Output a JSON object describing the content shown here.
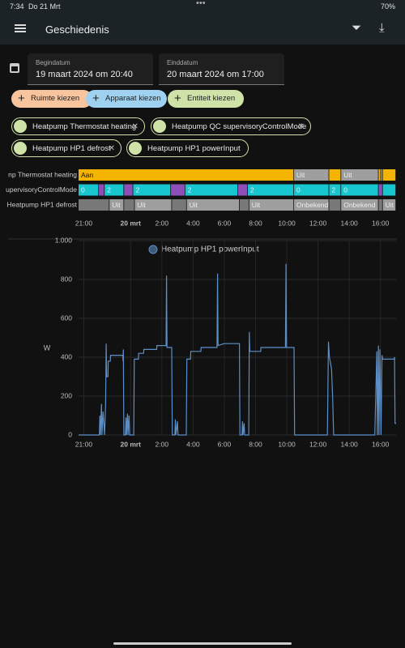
{
  "status": {
    "time": "7:34",
    "date": "Do 21 Mrt",
    "battery": "70%"
  },
  "header": {
    "title": "Geschiedenis"
  },
  "dates": {
    "start_label": "Begindatum",
    "start": "19 maart 2024 om 20:40",
    "end_label": "Einddatum",
    "end": "20 maart 2024 om 17:00"
  },
  "buttons": [
    "Ruimte kiezen",
    "Apparaat kiezen",
    "Entiteit kiezen"
  ],
  "chips": [
    "Heatpump Thermostat heating",
    "Heatpump QC supervisoryControlMode",
    "Heatpump HP1 defrost",
    "Heatpump HP1 powerInput"
  ],
  "timeline": {
    "rows": [
      {
        "name": "np Thermostat heating",
        "segments": [
          {
            "start": "20:40",
            "state": "Aan",
            "color": "#f5b400"
          },
          {
            "start": "10:28",
            "state": "Uit",
            "color": "#9e9e9e"
          },
          {
            "start": "12:43",
            "state": null,
            "color": "#f5b400"
          },
          {
            "start": "13:29",
            "state": "Uit",
            "color": "#9e9e9e"
          },
          {
            "start": "15:53",
            "state": null,
            "color": "#f5b400"
          },
          {
            "start": "16:02",
            "state": null,
            "color": "#9e9e9e"
          },
          {
            "start": "16:09",
            "state": null,
            "color": "#f5b400"
          }
        ]
      },
      {
        "name": "upervisoryControlMode",
        "segments": [
          {
            "start": "20:40",
            "state": "0",
            "color": "#18c6cf"
          },
          {
            "start": "21:58",
            "state": null,
            "color": "#8e4fb8"
          },
          {
            "start": "22:20",
            "state": "2",
            "color": "#18c6cf"
          },
          {
            "start": "23:35",
            "state": null,
            "color": "#8e4fb8"
          },
          {
            "start": "00:10",
            "state": "2",
            "color": "#18c6cf"
          },
          {
            "start": "02:35",
            "state": null,
            "color": "#8e4fb8"
          },
          {
            "start": "03:30",
            "state": "2",
            "color": "#18c6cf"
          },
          {
            "start": "06:53",
            "state": null,
            "color": "#8e4fb8"
          },
          {
            "start": "07:30",
            "state": "2",
            "color": "#18c6cf"
          },
          {
            "start": "10:28",
            "state": "0",
            "color": "#18c6cf"
          },
          {
            "start": "12:43",
            "state": "2",
            "color": "#18c6cf"
          },
          {
            "start": "13:29",
            "state": "0",
            "color": "#18c6cf"
          },
          {
            "start": "15:53",
            "state": null,
            "color": "#8e4fb8"
          },
          {
            "start": "16:09",
            "state": null,
            "color": "#18c6cf"
          }
        ]
      },
      {
        "name": "Heatpump HP1 defrost",
        "segments": [
          {
            "start": "20:40",
            "state": null,
            "color": "#787878"
          },
          {
            "start": "22:39",
            "state": "Uit",
            "color": "#9e9e9e"
          },
          {
            "start": "23:35",
            "state": null,
            "color": "#787878"
          },
          {
            "start": "00:16",
            "state": "Uit",
            "color": "#9e9e9e"
          },
          {
            "start": "02:39",
            "state": null,
            "color": "#787878"
          },
          {
            "start": "03:36",
            "state": "Uit",
            "color": "#9e9e9e"
          },
          {
            "start": "06:59",
            "state": null,
            "color": "#787878"
          },
          {
            "start": "07:36",
            "state": "Uit",
            "color": "#9e9e9e"
          },
          {
            "start": "10:28",
            "state": "Onbekend",
            "color": "#9e9e9e"
          },
          {
            "start": "12:43",
            "state": null,
            "color": "#787878"
          },
          {
            "start": "13:29",
            "state": "Onbekend",
            "color": "#9e9e9e"
          },
          {
            "start": "15:53",
            "state": null,
            "color": "#787878"
          },
          {
            "start": "16:09",
            "state": "Uit",
            "color": "#9e9e9e"
          }
        ]
      }
    ]
  },
  "chart_data": {
    "type": "line",
    "y_label": "W",
    "grid": true,
    "xlim": [
      "20:40",
      "17:00"
    ],
    "xticks": [
      "21:00",
      {
        "value": "00:00",
        "label": "20 mrt"
      },
      "2:00",
      "4:00",
      "6:00",
      "8:00",
      "10:00",
      "12:00",
      "14:00",
      "16:00"
    ],
    "ylim": [
      0,
      1000
    ],
    "yticks": [
      0,
      200,
      400,
      600,
      800,
      {
        "value": 1000,
        "label": "1.000"
      }
    ],
    "series": [
      {
        "name": "Heatpump HP1 powerInput",
        "color": "#5b8fc9",
        "x": [
          "20:40",
          "22:00",
          "22:02",
          "22:04",
          "22:08",
          "22:10",
          "22:14",
          "22:20",
          "22:24",
          "22:26",
          "22:28",
          "22:33",
          "22:34",
          "22:42",
          "22:43",
          "23:30",
          "23:31",
          "23:32",
          "23:34",
          "23:40",
          "23:42",
          "23:44",
          "23:48",
          "23:50",
          "23:54",
          "23:56",
          "0:12",
          "0:14",
          "0:30",
          "0:31",
          "0:50",
          "0:51",
          "1:40",
          "1:41",
          "2:16",
          "2:18",
          "2:20",
          "2:38",
          "2:40",
          "2:50",
          "2:52",
          "2:54",
          "3:00",
          "3:02",
          "3:34",
          "3:36",
          "3:50",
          "3:51",
          "4:30",
          "4:31",
          "5:32",
          "5:34",
          "5:36",
          "6:00",
          "6:58",
          "7:00",
          "7:08",
          "7:10",
          "7:12",
          "7:16",
          "7:18",
          "7:34",
          "7:36",
          "7:38",
          "8:20",
          "8:21",
          "9:55",
          "9:57",
          "9:59",
          "10:28",
          "10:30",
          "12:36",
          "12:40",
          "12:44",
          "12:52",
          "12:56",
          "13:00",
          "15:38",
          "15:42",
          "15:46",
          "15:48",
          "15:52",
          "15:54",
          "15:58",
          "16:02",
          "16:06",
          "16:08",
          "16:52",
          "16:54",
          "16:56",
          "17:00"
        ],
        "values": [
          0,
          0,
          100,
          0,
          160,
          0,
          120,
          0,
          160,
          470,
          300,
          300,
          380,
          380,
          410,
          410,
          380,
          440,
          0,
          0,
          90,
          0,
          110,
          0,
          100,
          0,
          0,
          390,
          390,
          420,
          420,
          440,
          440,
          460,
          460,
          820,
          450,
          450,
          0,
          0,
          80,
          0,
          70,
          0,
          0,
          390,
          390,
          430,
          430,
          450,
          450,
          830,
          460,
          470,
          470,
          0,
          0,
          70,
          0,
          60,
          0,
          0,
          530,
          430,
          430,
          450,
          450,
          880,
          450,
          450,
          0,
          0,
          480,
          400,
          340,
          200,
          0,
          0,
          200,
          430,
          0,
          460,
          0,
          440,
          0,
          410,
          390,
          390,
          400,
          60,
          60
        ]
      }
    ]
  }
}
